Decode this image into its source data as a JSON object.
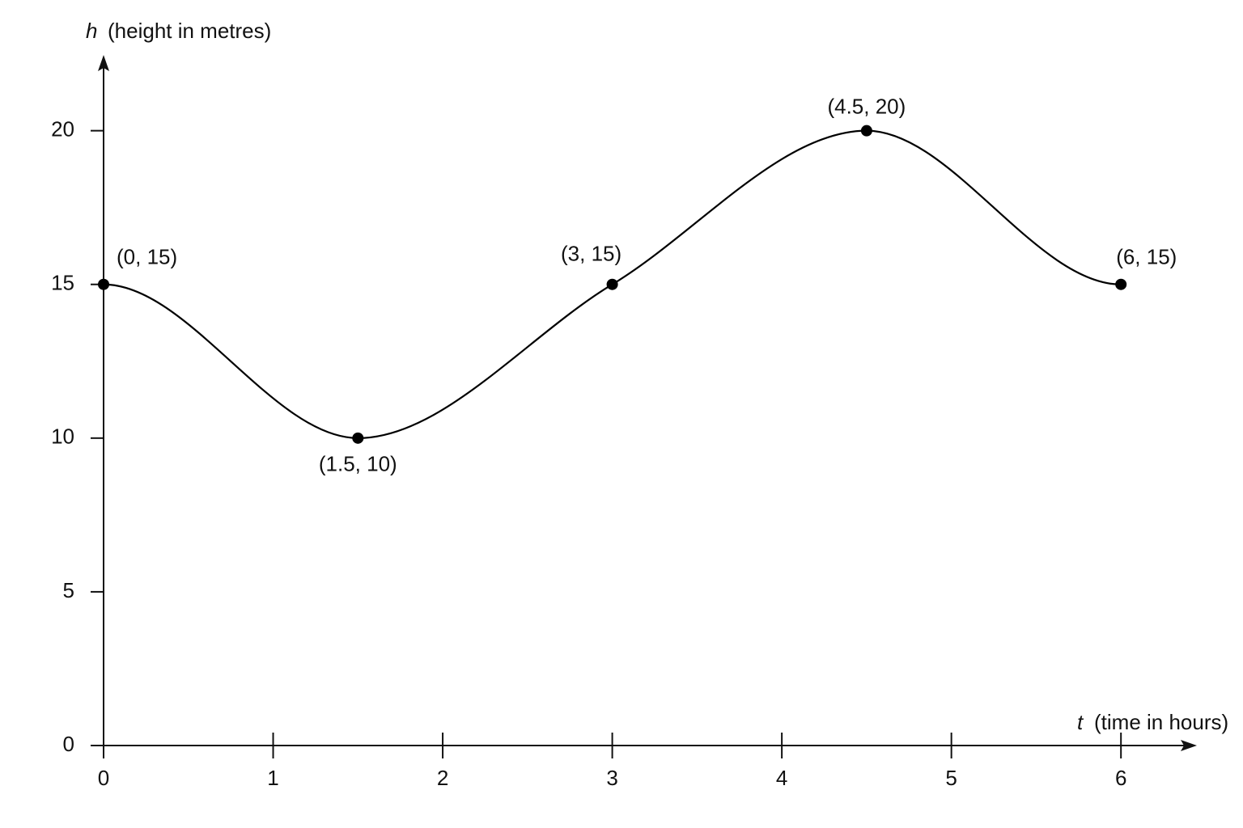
{
  "chart_data": {
    "type": "line",
    "x_label_var": "t",
    "x_label": "(time in hours)",
    "y_label_var": "h",
    "y_label": "(height in metres)",
    "x": [
      0,
      1.5,
      3,
      4.5,
      6
    ],
    "values": [
      15,
      10,
      15,
      20,
      15
    ],
    "value_labels": [
      "(0, 15)",
      "(1.5, 10)",
      "(3, 15)",
      "(4.5, 20)",
      "(6, 15)"
    ],
    "color": "#000000",
    "xlim": [
      0,
      6.4
    ],
    "xticks": [
      0,
      1,
      2,
      3,
      4,
      5,
      6
    ],
    "ylim": [
      0,
      22.2
    ],
    "yticks": [
      0,
      5,
      10,
      15,
      20
    ],
    "grid": false,
    "markers": true
  }
}
